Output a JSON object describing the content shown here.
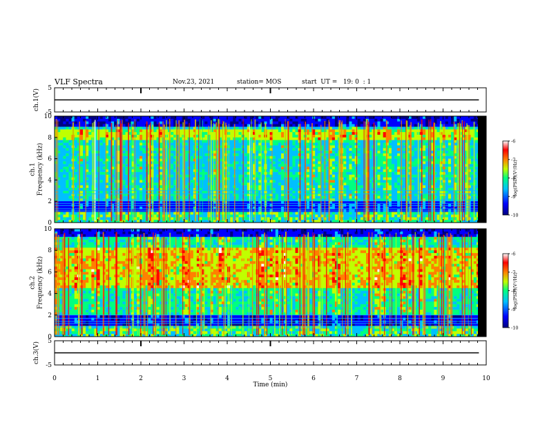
{
  "header": {
    "title": "VLF Spectra",
    "date": "Nov.23, 2021",
    "station": "station= MOS",
    "start_ut": "start  UT =   19: 0  : 1"
  },
  "chart_data": [
    {
      "type": "line",
      "panel": "ch.1 voltage",
      "ylabel": "ch.1(V)",
      "ylim": [
        -5,
        5
      ],
      "yticks": [
        "5",
        "-5"
      ],
      "x": [
        0,
        9.83
      ],
      "values": [
        0,
        0
      ]
    },
    {
      "type": "heatmap",
      "panel": "ch.1 spectrogram",
      "ylabel": "ch.1\nFrequency (kHz)",
      "ylim": [
        0,
        10
      ],
      "yticks": [
        "0",
        "2",
        "4",
        "6",
        "8",
        "10"
      ],
      "colorbar": {
        "label": "log(PSD)(V²/Hz)",
        "range": [
          -10,
          -6
        ],
        "ticks": [
          "-6",
          "-7",
          "-8",
          "-9",
          "-10"
        ]
      }
    },
    {
      "type": "heatmap",
      "panel": "ch.2 spectrogram",
      "ylabel": "ch.2\nFrequency (kHz)",
      "ylim": [
        0,
        10
      ],
      "yticks": [
        "0",
        "2",
        "4",
        "6",
        "8",
        "10"
      ],
      "colorbar": {
        "label": "log(PSD)(V²/Hz)",
        "range": [
          -10,
          -6
        ],
        "ticks": [
          "-6",
          "-7",
          "-8",
          "-9",
          "-10"
        ]
      }
    },
    {
      "type": "line",
      "panel": "ch.3 voltage",
      "ylabel": "ch.3(V)",
      "ylim": [
        -5,
        5
      ],
      "yticks": [
        "5",
        "-5"
      ],
      "x": [
        0,
        9.83
      ],
      "values": [
        0,
        0
      ]
    }
  ],
  "xaxis": {
    "label": "Time (min)",
    "xlim": [
      0,
      10
    ],
    "ticks": [
      "0",
      "1",
      "2",
      "3",
      "4",
      "5",
      "6",
      "7",
      "8",
      "9",
      "10"
    ]
  },
  "colormap": [
    "#000080",
    "#0000ff",
    "#00c0ff",
    "#00ff80",
    "#c0ff00",
    "#ff8000",
    "#ff0000",
    "#ffffff"
  ]
}
